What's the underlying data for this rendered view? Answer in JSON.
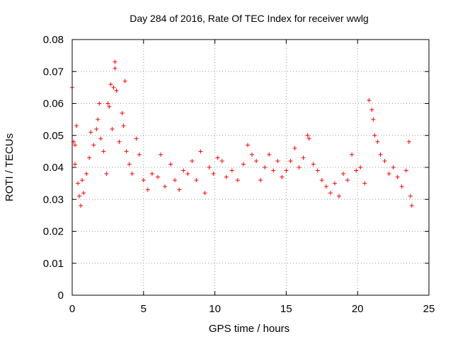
{
  "chart_data": {
    "type": "scatter",
    "title": "Day 284 of 2016, Rate Of TEC Index for receiver wwlg",
    "xlabel": "GPS time / hours",
    "ylabel": "ROTI / TECUs",
    "xlim": [
      0,
      25
    ],
    "ylim": [
      0,
      0.08
    ],
    "xticks": [
      0,
      5,
      10,
      15,
      20,
      25
    ],
    "xtick_labels": [
      "0",
      "5",
      "10",
      "15",
      "20",
      "25"
    ],
    "yticks": [
      0,
      0.01,
      0.02,
      0.03,
      0.04,
      0.05,
      0.06,
      0.07,
      0.08
    ],
    "ytick_labels": [
      "0",
      "0.01",
      "0.02",
      "0.03",
      "0.04",
      "0.05",
      "0.06",
      "0.07",
      "0.08"
    ],
    "grid": true,
    "marker": "+",
    "color": "#ff0000",
    "series": [
      {
        "name": "ROTI",
        "points": [
          [
            0.0,
            0.065
          ],
          [
            0.1,
            0.048
          ],
          [
            0.2,
            0.047
          ],
          [
            0.3,
            0.053
          ],
          [
            0.2,
            0.041
          ],
          [
            0.4,
            0.035
          ],
          [
            0.5,
            0.031
          ],
          [
            0.6,
            0.028
          ],
          [
            0.7,
            0.036
          ],
          [
            0.8,
            0.032
          ],
          [
            1.0,
            0.038
          ],
          [
            1.2,
            0.043
          ],
          [
            1.3,
            0.051
          ],
          [
            1.5,
            0.047
          ],
          [
            1.7,
            0.052
          ],
          [
            1.8,
            0.055
          ],
          [
            1.9,
            0.06
          ],
          [
            2.0,
            0.049
          ],
          [
            2.2,
            0.045
          ],
          [
            2.4,
            0.038
          ],
          [
            2.5,
            0.06
          ],
          [
            2.6,
            0.059
          ],
          [
            2.7,
            0.066
          ],
          [
            2.8,
            0.052
          ],
          [
            2.9,
            0.065
          ],
          [
            3.0,
            0.073
          ],
          [
            3.0,
            0.071
          ],
          [
            3.1,
            0.064
          ],
          [
            3.3,
            0.048
          ],
          [
            3.5,
            0.057
          ],
          [
            3.6,
            0.053
          ],
          [
            3.7,
            0.067
          ],
          [
            3.8,
            0.045
          ],
          [
            4.0,
            0.041
          ],
          [
            4.2,
            0.038
          ],
          [
            4.5,
            0.049
          ],
          [
            4.7,
            0.044
          ],
          [
            5.0,
            0.036
          ],
          [
            5.3,
            0.033
          ],
          [
            5.6,
            0.038
          ],
          [
            6.0,
            0.037
          ],
          [
            6.2,
            0.044
          ],
          [
            6.5,
            0.034
          ],
          [
            6.9,
            0.041
          ],
          [
            7.2,
            0.036
          ],
          [
            7.5,
            0.033
          ],
          [
            7.8,
            0.039
          ],
          [
            8.1,
            0.038
          ],
          [
            8.4,
            0.042
          ],
          [
            8.7,
            0.036
          ],
          [
            9.0,
            0.045
          ],
          [
            9.3,
            0.032
          ],
          [
            9.6,
            0.04
          ],
          [
            9.9,
            0.038
          ],
          [
            10.2,
            0.043
          ],
          [
            10.5,
            0.042
          ],
          [
            10.8,
            0.037
          ],
          [
            11.2,
            0.039
          ],
          [
            11.6,
            0.036
          ],
          [
            12.0,
            0.041
          ],
          [
            12.3,
            0.047
          ],
          [
            12.6,
            0.044
          ],
          [
            12.9,
            0.042
          ],
          [
            13.2,
            0.036
          ],
          [
            13.5,
            0.04
          ],
          [
            13.8,
            0.044
          ],
          [
            14.1,
            0.039
          ],
          [
            14.4,
            0.042
          ],
          [
            14.7,
            0.037
          ],
          [
            15.0,
            0.039
          ],
          [
            15.3,
            0.042
          ],
          [
            15.6,
            0.046
          ],
          [
            15.9,
            0.04
          ],
          [
            16.2,
            0.043
          ],
          [
            16.5,
            0.05
          ],
          [
            16.6,
            0.049
          ],
          [
            16.9,
            0.041
          ],
          [
            17.2,
            0.039
          ],
          [
            17.5,
            0.036
          ],
          [
            17.8,
            0.034
          ],
          [
            18.1,
            0.032
          ],
          [
            18.4,
            0.035
          ],
          [
            18.7,
            0.031
          ],
          [
            19.0,
            0.038
          ],
          [
            19.3,
            0.036
          ],
          [
            19.6,
            0.044
          ],
          [
            19.9,
            0.039
          ],
          [
            20.2,
            0.04
          ],
          [
            20.5,
            0.035
          ],
          [
            20.8,
            0.061
          ],
          [
            21.0,
            0.058
          ],
          [
            21.1,
            0.055
          ],
          [
            21.2,
            0.05
          ],
          [
            21.4,
            0.048
          ],
          [
            21.6,
            0.044
          ],
          [
            21.9,
            0.042
          ],
          [
            22.2,
            0.038
          ],
          [
            22.5,
            0.04
          ],
          [
            22.8,
            0.037
          ],
          [
            23.1,
            0.034
          ],
          [
            23.4,
            0.039
          ],
          [
            23.6,
            0.048
          ],
          [
            23.7,
            0.031
          ],
          [
            23.8,
            0.028
          ]
        ]
      }
    ]
  }
}
